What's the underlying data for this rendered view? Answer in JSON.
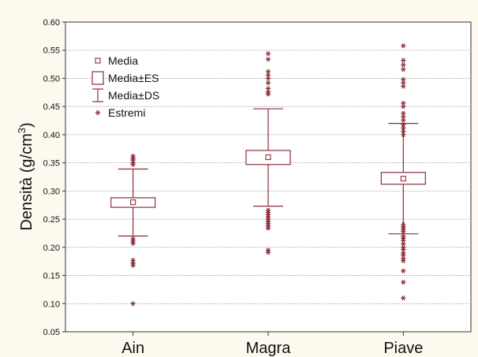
{
  "chart_data": {
    "type": "boxplot",
    "xlabel": "",
    "ylabel": "Densità (g/cm",
    "ylabel_sup": "3",
    "ylabel_close": ")",
    "ylim": [
      0.05,
      0.6
    ],
    "yticks": [
      "0.05",
      "0.10",
      "0.15",
      "0.20",
      "0.25",
      "0.30",
      "0.35",
      "0.40",
      "0.45",
      "0.50",
      "0.55",
      "0.60"
    ],
    "grid": true,
    "legend_position": "top-left",
    "colors": {
      "mark": "#8b2f3a",
      "frame_background": "#fdf9ee",
      "plot_background": "#ffffff",
      "grid": "#9a9a9a",
      "axis": "#333333"
    },
    "legend": [
      {
        "label": "Media",
        "symbol": "mean"
      },
      {
        "label": "Media±ES",
        "symbol": "box"
      },
      {
        "label": "Media±DS",
        "symbol": "whisker"
      },
      {
        "label": "Estremi",
        "symbol": "extreme"
      }
    ],
    "categories": [
      "Ain",
      "Magra",
      "Piave"
    ],
    "groups": [
      {
        "category": "Ain",
        "mean": 0.28,
        "se_low": 0.271,
        "se_high": 0.288,
        "sd_low": 0.22,
        "sd_high": 0.339,
        "extremes": [
          0.362,
          0.358,
          0.355,
          0.35,
          0.347,
          0.215,
          0.211,
          0.207,
          0.177,
          0.172,
          0.168,
          0.1
        ]
      },
      {
        "category": "Magra",
        "mean": 0.36,
        "se_low": 0.347,
        "se_high": 0.372,
        "sd_low": 0.273,
        "sd_high": 0.446,
        "extremes": [
          0.544,
          0.534,
          0.512,
          0.506,
          0.5,
          0.492,
          0.482,
          0.476,
          0.472,
          0.266,
          0.262,
          0.258,
          0.254,
          0.25,
          0.246,
          0.242,
          0.238,
          0.234,
          0.195,
          0.191
        ]
      },
      {
        "category": "Piave",
        "mean": 0.322,
        "se_low": 0.312,
        "se_high": 0.333,
        "sd_low": 0.224,
        "sd_high": 0.42,
        "extremes": [
          0.558,
          0.532,
          0.524,
          0.516,
          0.498,
          0.492,
          0.486,
          0.456,
          0.45,
          0.438,
          0.432,
          0.426,
          0.418,
          0.412,
          0.406,
          0.4,
          0.24,
          0.236,
          0.232,
          0.228,
          0.22,
          0.216,
          0.212,
          0.206,
          0.2,
          0.196,
          0.19,
          0.186,
          0.18,
          0.176,
          0.158,
          0.138,
          0.11
        ]
      }
    ]
  }
}
